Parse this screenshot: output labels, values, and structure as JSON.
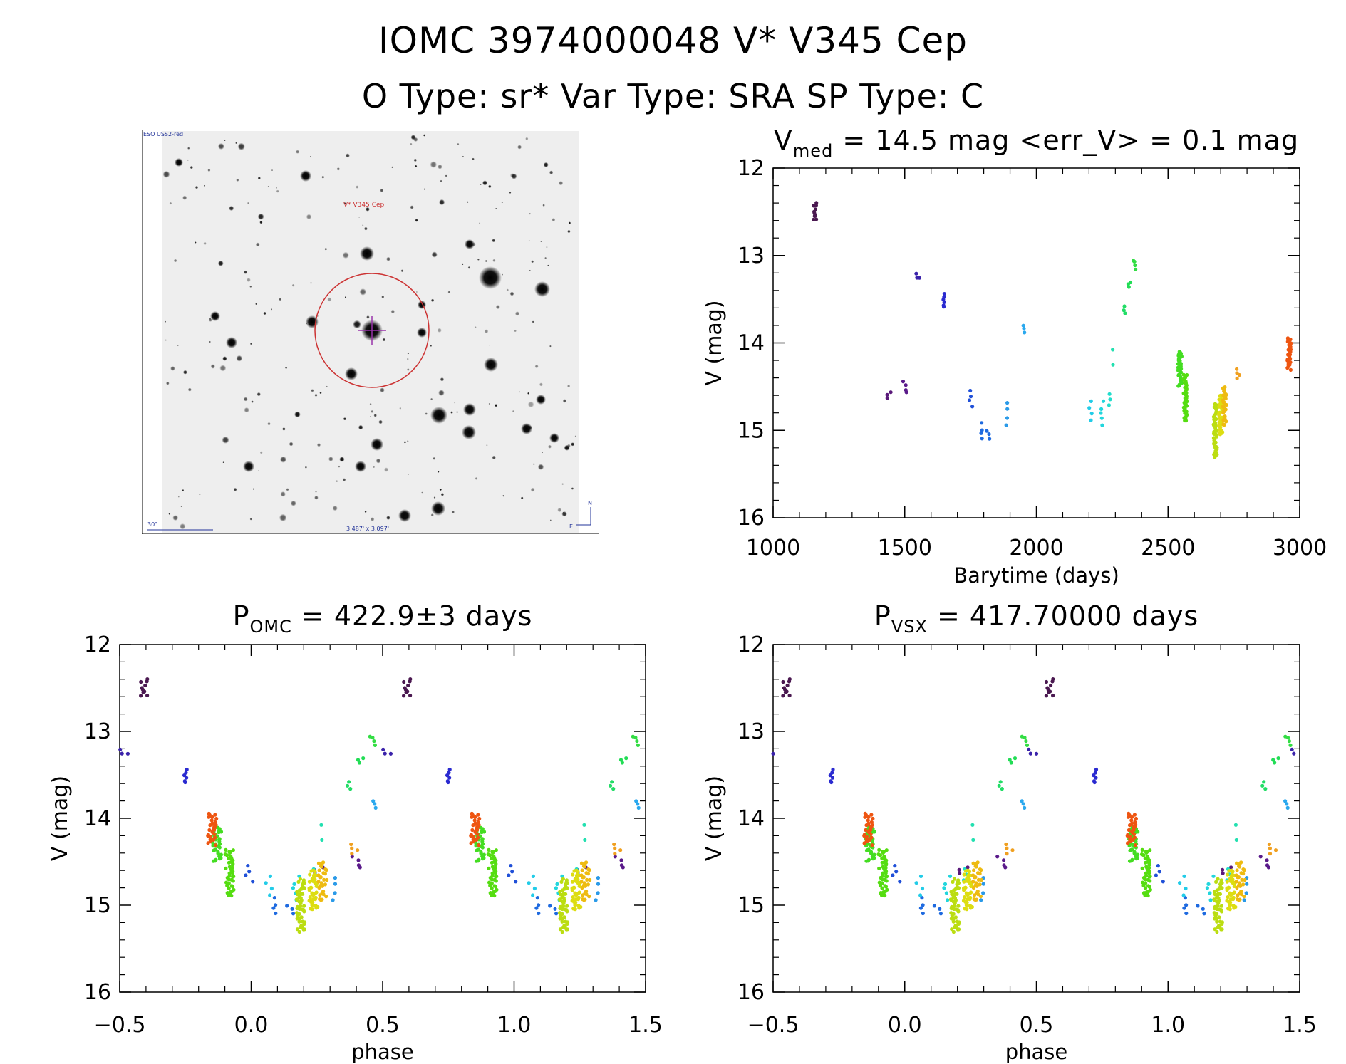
{
  "header": {
    "title_line1": "IOMC 3974000048   V* V345 Cep",
    "title_line2": "O Type: sr*  Var Type: SRA  SP Type: C"
  },
  "finder": {
    "survey_label": "ESO USS2-red",
    "target_label": "V* V345 Cep",
    "scale_label": "30\"",
    "fov_label": "3.487' x 3.097'",
    "north_label": "N",
    "east_label": "E",
    "circle_color": "#cc3333",
    "cross_color": "#9933aa"
  },
  "chart_data": [
    {
      "id": "lightcurve",
      "type": "scatter",
      "title_main": "V",
      "title_sub": "med",
      "title_rest": " = 14.5 mag <err_V> = 0.1 mag",
      "xlabel": "Barytime (days)",
      "ylabel": "V (mag)",
      "xlim": [
        1000,
        3000
      ],
      "ylim": [
        12,
        16
      ],
      "y_inverted": true,
      "xticks": [
        1000,
        1500,
        2000,
        2500,
        3000
      ],
      "yticks": [
        12,
        13,
        14,
        15,
        16
      ],
      "groups": [
        {
          "x": 1160,
          "mag": [
            12.4,
            12.6
          ],
          "n": 10,
          "color": "#4a1850"
        },
        {
          "x": 1440,
          "mag": [
            14.57,
            14.64
          ],
          "n": 3,
          "color": "#5a1a7a"
        },
        {
          "x": 1500,
          "mag": [
            14.45,
            14.57
          ],
          "n": 4,
          "color": "#5a1a8a"
        },
        {
          "x": 1550,
          "mag": [
            13.22,
            13.27
          ],
          "n": 3,
          "color": "#3a22aa"
        },
        {
          "x": 1645,
          "mag": [
            13.45,
            13.6
          ],
          "n": 6,
          "color": "#2a2ad0"
        },
        {
          "x": 1750,
          "mag": [
            14.55,
            14.73
          ],
          "n": 4,
          "color": "#2050d8"
        },
        {
          "x": 1790,
          "mag": [
            14.93,
            15.1
          ],
          "n": 4,
          "color": "#1e6ae0"
        },
        {
          "x": 1815,
          "mag": [
            15.0,
            15.1
          ],
          "n": 3,
          "color": "#1e6ae0"
        },
        {
          "x": 1890,
          "mag": [
            14.68,
            14.93
          ],
          "n": 4,
          "color": "#2a9ae8"
        },
        {
          "x": 1950,
          "mag": [
            13.8,
            13.88
          ],
          "n": 3,
          "color": "#2aa8ee"
        },
        {
          "x": 2205,
          "mag": [
            14.68,
            14.88
          ],
          "n": 4,
          "color": "#22cce8"
        },
        {
          "x": 2250,
          "mag": [
            14.68,
            14.93
          ],
          "n": 5,
          "color": "#22d6dd"
        },
        {
          "x": 2275,
          "mag": [
            14.58,
            14.7
          ],
          "n": 3,
          "color": "#22ddcc"
        },
        {
          "x": 2295,
          "mag": [
            14.08,
            14.25
          ],
          "n": 2,
          "color": "#22e0b0"
        },
        {
          "x": 2335,
          "mag": [
            13.58,
            13.67
          ],
          "n": 3,
          "color": "#22dd66"
        },
        {
          "x": 2355,
          "mag": [
            13.3,
            13.37
          ],
          "n": 3,
          "color": "#22dd55"
        },
        {
          "x": 2370,
          "mag": [
            13.05,
            13.15
          ],
          "n": 4,
          "color": "#33dd44"
        },
        {
          "x": 2545,
          "mag": [
            14.1,
            14.5
          ],
          "n": 40,
          "color": "#44dd22"
        },
        {
          "x": 2565,
          "mag": [
            14.35,
            14.9
          ],
          "n": 45,
          "color": "#55dd11"
        },
        {
          "x": 2680,
          "mag": [
            14.7,
            15.3
          ],
          "n": 50,
          "color": "#bbdd11"
        },
        {
          "x": 2700,
          "mag": [
            14.6,
            15.05
          ],
          "n": 40,
          "color": "#dddd11"
        },
        {
          "x": 2715,
          "mag": [
            14.5,
            14.95
          ],
          "n": 30,
          "color": "#eebb11"
        },
        {
          "x": 2765,
          "mag": [
            14.3,
            14.42
          ],
          "n": 4,
          "color": "#f0a020"
        },
        {
          "x": 2960,
          "mag": [
            13.95,
            14.3
          ],
          "n": 30,
          "color": "#ee5511"
        }
      ]
    },
    {
      "id": "phase_omc",
      "type": "scatter",
      "title_main": "P",
      "title_sub": "OMC",
      "title_rest": " = 422.9±3 days",
      "xlabel": "phase",
      "ylabel": "V (mag)",
      "period": 422.9,
      "epoch": 2600,
      "xlim": [
        -0.5,
        1.5
      ],
      "ylim": [
        12,
        16
      ],
      "y_inverted": true,
      "xticks": [
        -0.5,
        0.0,
        0.5,
        1.0,
        1.5
      ],
      "yticks": [
        12,
        13,
        14,
        15,
        16
      ]
    },
    {
      "id": "phase_vsx",
      "type": "scatter",
      "title_main": "P",
      "title_sub": "VSX",
      "title_rest": " = 417.70000 days",
      "xlabel": "phase",
      "ylabel": "V (mag)",
      "period": 417.7,
      "epoch": 2600,
      "xlim": [
        -0.5,
        1.5
      ],
      "ylim": [
        12,
        16
      ],
      "y_inverted": true,
      "xticks": [
        -0.5,
        0.0,
        0.5,
        1.0,
        1.5
      ],
      "yticks": [
        12,
        13,
        14,
        15,
        16
      ]
    }
  ]
}
